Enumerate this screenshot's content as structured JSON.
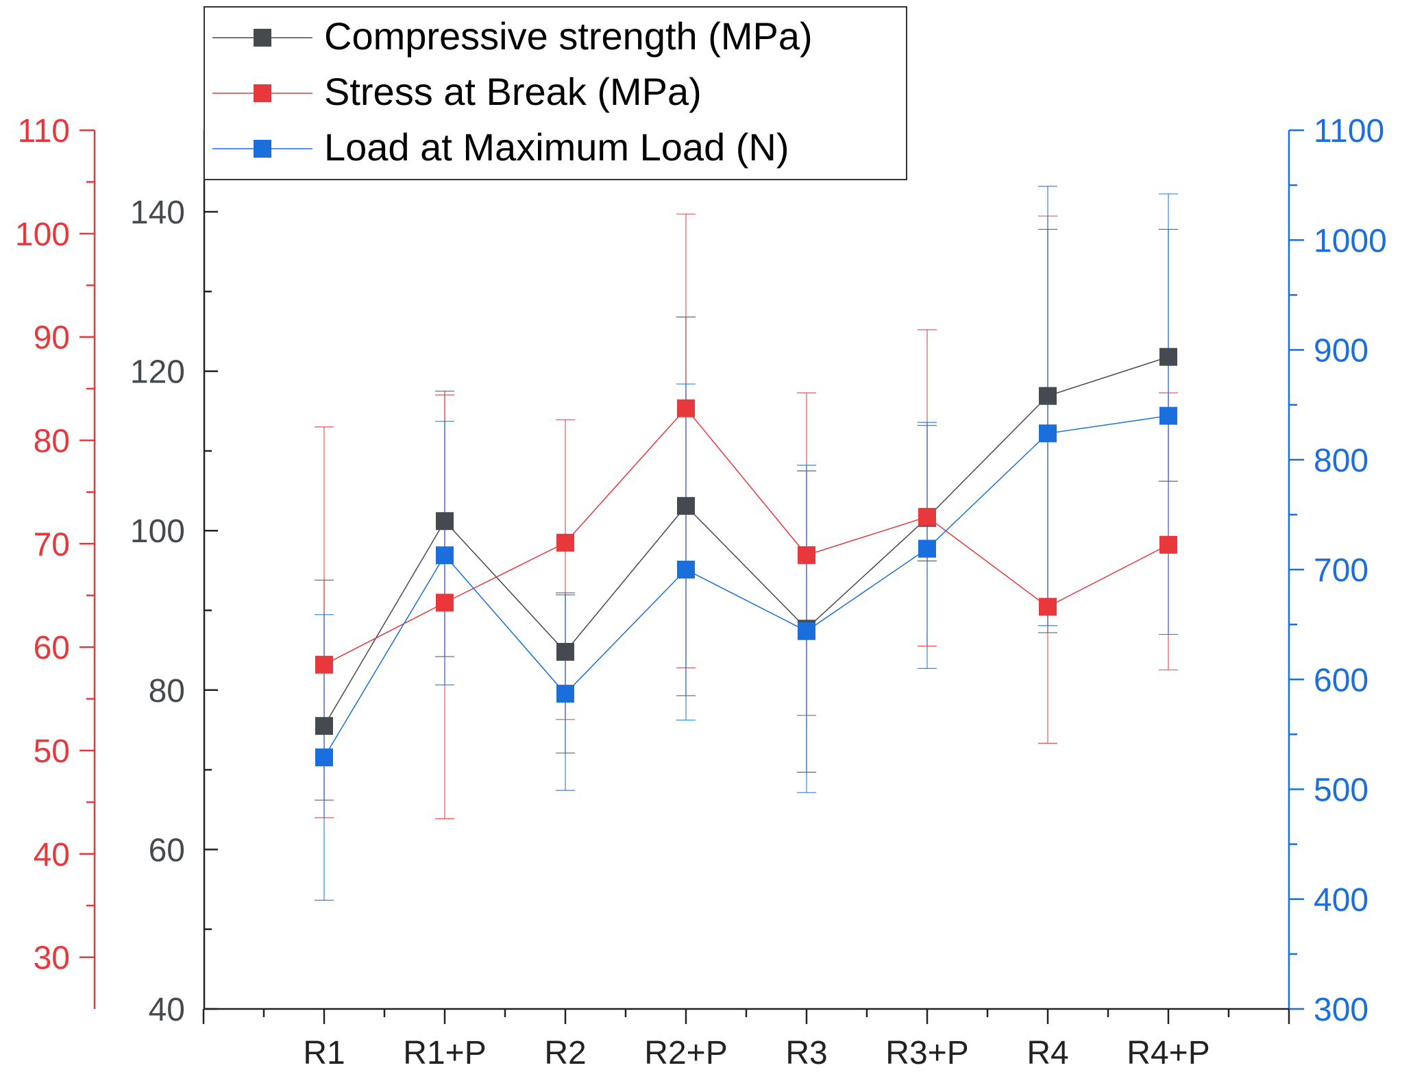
{
  "chart_data": {
    "type": "line",
    "title": "",
    "xlabel": "",
    "categories": [
      "R1",
      "R1+P",
      "R2",
      "R2+P",
      "R3",
      "R3+P",
      "R4",
      "R4+P"
    ],
    "series": [
      {
        "name": "Compressive strength (MPa)",
        "axis": "y_mid",
        "color": "#444a4f",
        "values": [
          75.5,
          101.2,
          84.8,
          103.1,
          87.7,
          101.6,
          116.9,
          121.8
        ],
        "err_low": [
          66.2,
          84.2,
          72.1,
          79.3,
          69.7,
          96.2,
          87.2,
          106.2
        ],
        "err_high": [
          93.8,
          117.5,
          92.2,
          126.8,
          107.5,
          113.2,
          137.8,
          137.8
        ]
      },
      {
        "name": "Stress at Break (MPa)",
        "axis": "y_left",
        "color": "#e8383c",
        "values": [
          58.3,
          64.3,
          70.1,
          83.1,
          68.9,
          72.6,
          63.9,
          69.9
        ],
        "err_low": [
          43.5,
          43.4,
          53.0,
          58.0,
          53.4,
          60.1,
          50.7,
          57.8
        ],
        "err_high": [
          81.3,
          84.4,
          82.0,
          101.9,
          84.6,
          90.7,
          101.7,
          84.6
        ]
      },
      {
        "name": "Load at Maximum Load (N)",
        "axis": "y_right",
        "color": "#1a6fdc",
        "values": [
          529,
          713,
          587,
          700,
          644,
          719,
          824,
          840
        ],
        "err_low": [
          399,
          595,
          499,
          563,
          497,
          610,
          649,
          641
        ],
        "err_high": [
          659,
          835,
          677,
          869,
          795,
          834,
          1049,
          1042
        ]
      }
    ],
    "axes": {
      "y_left": {
        "color": "#e8383c",
        "ylim": [
          25,
          110
        ],
        "ticks": [
          30,
          40,
          50,
          60,
          70,
          80,
          90,
          100,
          110
        ],
        "labels": [
          "30",
          "40",
          "50",
          "60",
          "70",
          "80",
          "90",
          "100",
          "110"
        ]
      },
      "y_mid": {
        "color": "#444a4f",
        "ylim": [
          40,
          150
        ],
        "ticks": [
          40,
          60,
          80,
          100,
          120,
          140
        ],
        "labels": [
          "40",
          "60",
          "80",
          "100",
          "120",
          "140"
        ]
      },
      "y_right": {
        "color": "#1a6fdc",
        "ylim": [
          300,
          1100
        ],
        "ticks": [
          300,
          400,
          500,
          600,
          700,
          800,
          900,
          1000,
          1100
        ],
        "labels": [
          "300",
          "400",
          "500",
          "600",
          "700",
          "800",
          "900",
          "1000",
          "1100"
        ]
      }
    },
    "legend": {
      "position": "top-left",
      "entries": [
        "Compressive strength (MPa)",
        "Stress at Break (MPa)",
        "Load at Maximum Load (N)"
      ]
    }
  }
}
